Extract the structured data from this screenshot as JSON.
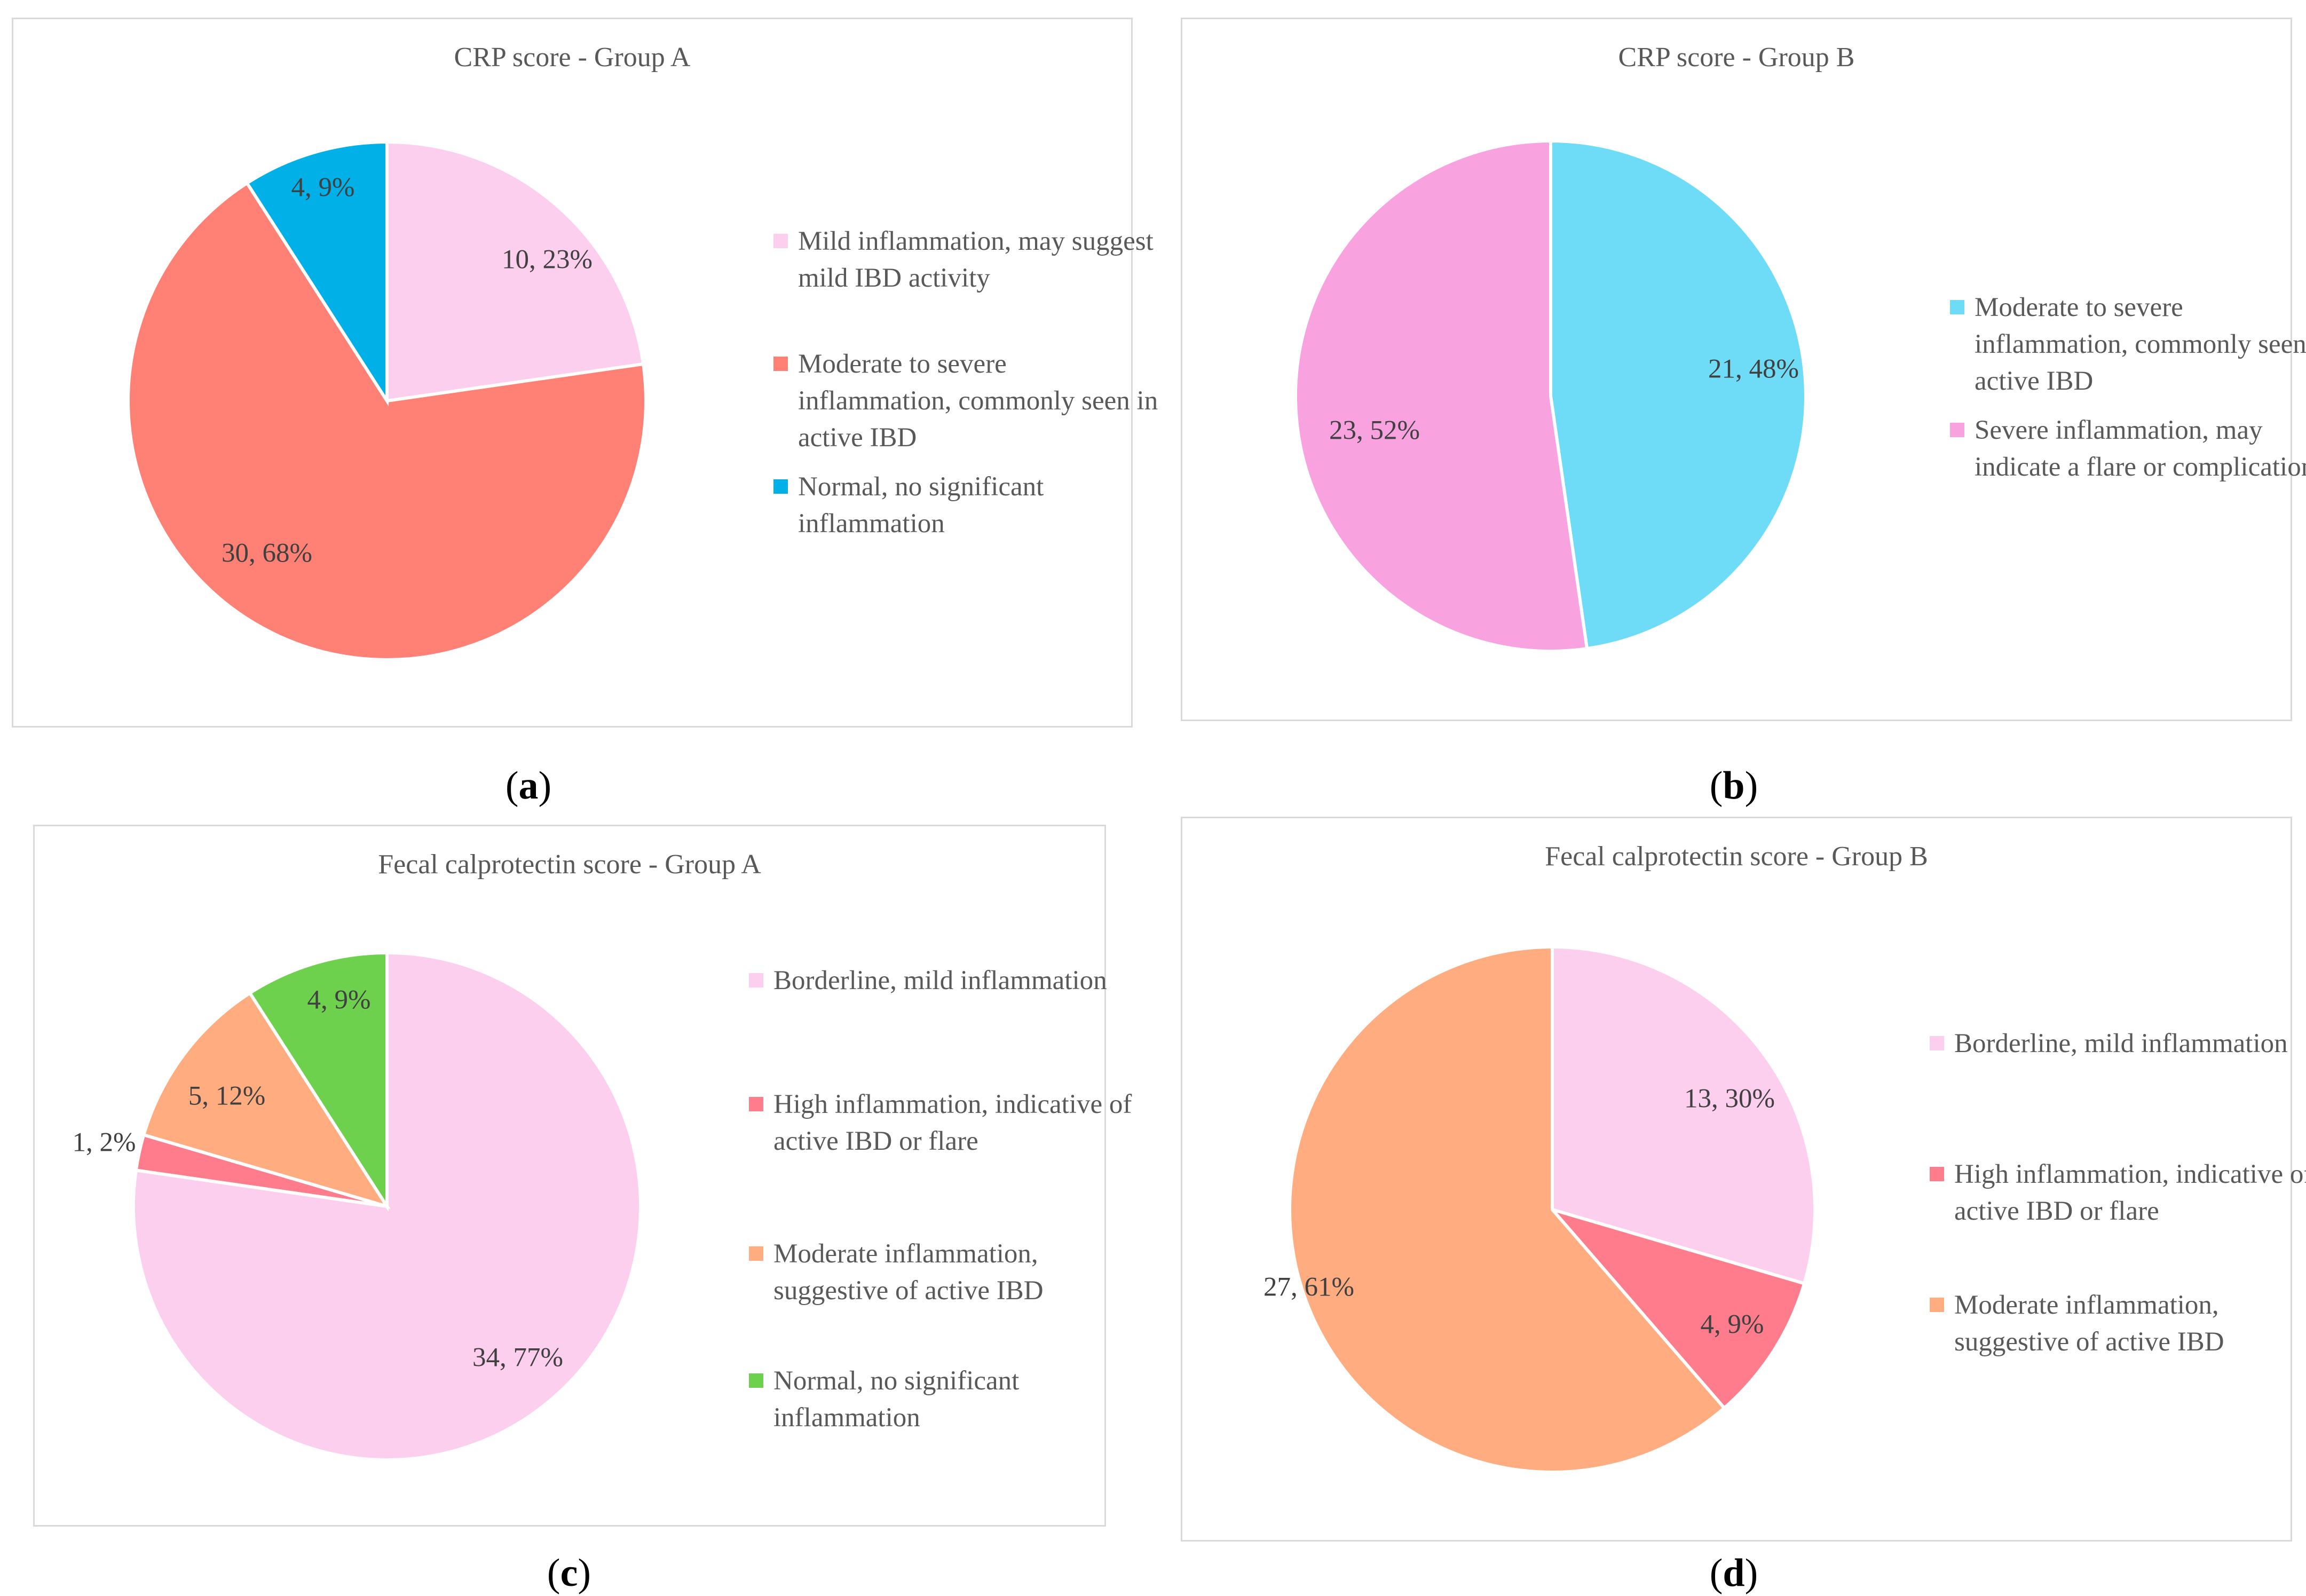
{
  "chart_data": [
    {
      "type": "pie",
      "title": "CRP score - Group A",
      "caption": "a",
      "slices": [
        {
          "label": "Mild inflammation, may suggest mild IBD activity",
          "value": 10,
          "percent": 23,
          "data_label": "10, 23%",
          "color": "#FCCFEE"
        },
        {
          "label": "Moderate to severe inflammation, commonly seen in active IBD",
          "value": 30,
          "percent": 68,
          "data_label": "30, 68%",
          "color": "#FF8075"
        },
        {
          "label": "Normal, no significant inflammation",
          "value": 4,
          "percent": 9,
          "data_label": "4, 9%",
          "color": "#00B0E6"
        }
      ]
    },
    {
      "type": "pie",
      "title": "CRP score - Group B",
      "caption": "b",
      "slices": [
        {
          "label": "Moderate to severe inflammation, commonly seen in active IBD",
          "value": 21,
          "percent": 48,
          "data_label": "21, 48%",
          "color": "#6EDCF6"
        },
        {
          "label": "Severe inflammation, may indicate a flare or complication",
          "value": 23,
          "percent": 52,
          "data_label": "23, 52%",
          "color": "#F9A2E0"
        }
      ]
    },
    {
      "type": "pie",
      "title": "Fecal calprotectin score - Group A",
      "caption": "c",
      "slices": [
        {
          "label": "Borderline, mild inflammation",
          "value": 34,
          "percent": 77,
          "data_label": "34, 77%",
          "color": "#FCCFEE"
        },
        {
          "label": "High inflammation, indicative of active IBD or flare",
          "value": 1,
          "percent": 2,
          "data_label": "1, 2%",
          "color": "#FF7C8C"
        },
        {
          "label": "Moderate inflammation, suggestive of active IBD",
          "value": 5,
          "percent": 12,
          "data_label": "5, 12%",
          "color": "#FFAD80"
        },
        {
          "label": "Normal, no significant inflammation",
          "value": 4,
          "percent": 9,
          "data_label": "4, 9%",
          "color": "#6DD14E"
        }
      ]
    },
    {
      "type": "pie",
      "title": "Fecal calprotectin score - Group B",
      "caption": "d",
      "slices": [
        {
          "label": "Borderline, mild inflammation",
          "value": 13,
          "percent": 30,
          "data_label": "13, 30%",
          "color": "#FCCFEE"
        },
        {
          "label": "High inflammation, indicative of active IBD or flare",
          "value": 4,
          "percent": 9,
          "data_label": "4, 9%",
          "color": "#FF7C8C"
        },
        {
          "label": "Moderate inflammation, suggestive of active IBD",
          "value": 27,
          "percent": 61,
          "data_label": "27, 61%",
          "color": "#FFAD80"
        }
      ]
    }
  ]
}
